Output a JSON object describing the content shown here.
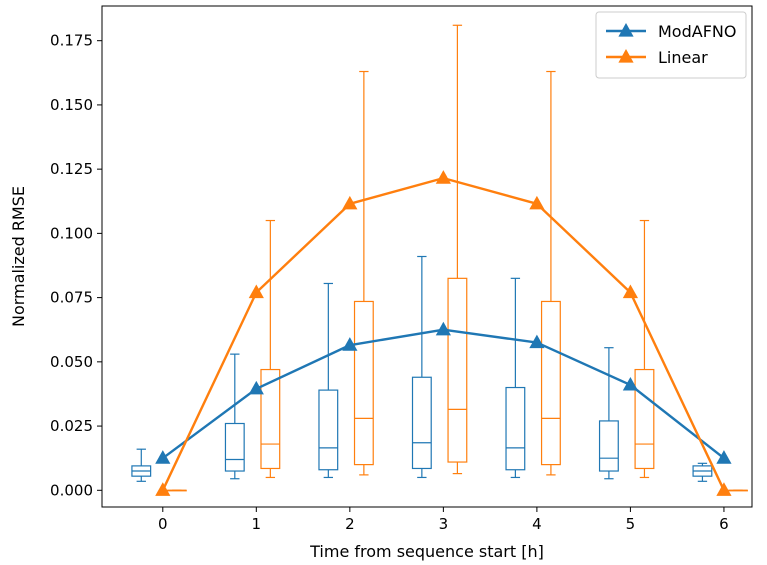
{
  "chart_data": {
    "type": "line",
    "xlabel": "Time from sequence start [h]",
    "ylabel": "Normalized RMSE",
    "x": [
      0,
      1,
      2,
      3,
      4,
      5,
      6
    ],
    "xticks": [
      "0",
      "1",
      "2",
      "3",
      "4",
      "5",
      "6"
    ],
    "yticks": [
      "0.000",
      "0.025",
      "0.050",
      "0.075",
      "0.100",
      "0.125",
      "0.150",
      "0.175"
    ],
    "xlim": [
      -0.65,
      6.3
    ],
    "ylim": [
      -0.0065,
      0.1885
    ],
    "grid": false,
    "legend_position": "top-right",
    "series": [
      {
        "name": "ModAFNO",
        "color": "#1f77b4",
        "marker": "triangle",
        "values": [
          0.0125,
          0.0395,
          0.0565,
          0.0625,
          0.0575,
          0.041,
          0.0125
        ],
        "boxes": [
          {
            "x": 0,
            "whislo": 0.0035,
            "q1": 0.0055,
            "med": 0.0075,
            "q3": 0.0095,
            "whishi": 0.016
          },
          {
            "x": 1,
            "whislo": 0.0045,
            "q1": 0.0075,
            "med": 0.012,
            "q3": 0.026,
            "whishi": 0.053
          },
          {
            "x": 2,
            "whislo": 0.005,
            "q1": 0.008,
            "med": 0.0165,
            "q3": 0.039,
            "whishi": 0.0805
          },
          {
            "x": 3,
            "whislo": 0.005,
            "q1": 0.0085,
            "med": 0.0185,
            "q3": 0.044,
            "whishi": 0.091
          },
          {
            "x": 4,
            "whislo": 0.005,
            "q1": 0.008,
            "med": 0.0165,
            "q3": 0.04,
            "whishi": 0.0825
          },
          {
            "x": 5,
            "whislo": 0.0045,
            "q1": 0.0075,
            "med": 0.0125,
            "q3": 0.027,
            "whishi": 0.0555
          },
          {
            "x": 6,
            "whislo": 0.0035,
            "q1": 0.0055,
            "med": 0.0075,
            "q3": 0.0095,
            "whishi": 0.0105
          }
        ]
      },
      {
        "name": "Linear",
        "color": "#ff7f0e",
        "marker": "triangle",
        "values": [
          0.0,
          0.077,
          0.1115,
          0.1215,
          0.1115,
          0.077,
          0.0
        ],
        "boxes": [
          {
            "x": 0,
            "whislo": 0.0,
            "q1": 0.0,
            "med": 0.0,
            "q3": 0.0,
            "whishi": 0.0
          },
          {
            "x": 1,
            "whislo": 0.005,
            "q1": 0.0085,
            "med": 0.018,
            "q3": 0.047,
            "whishi": 0.105
          },
          {
            "x": 2,
            "whislo": 0.006,
            "q1": 0.01,
            "med": 0.028,
            "q3": 0.0735,
            "whishi": 0.163
          },
          {
            "x": 3,
            "whislo": 0.0065,
            "q1": 0.011,
            "med": 0.0315,
            "q3": 0.0825,
            "whishi": 0.181
          },
          {
            "x": 4,
            "whislo": 0.006,
            "q1": 0.01,
            "med": 0.028,
            "q3": 0.0735,
            "whishi": 0.163
          },
          {
            "x": 5,
            "whislo": 0.005,
            "q1": 0.0085,
            "med": 0.018,
            "q3": 0.047,
            "whishi": 0.105
          },
          {
            "x": 6,
            "whislo": 0.0,
            "q1": 0.0,
            "med": 0.0,
            "q3": 0.0,
            "whishi": 0.0
          }
        ]
      }
    ]
  }
}
